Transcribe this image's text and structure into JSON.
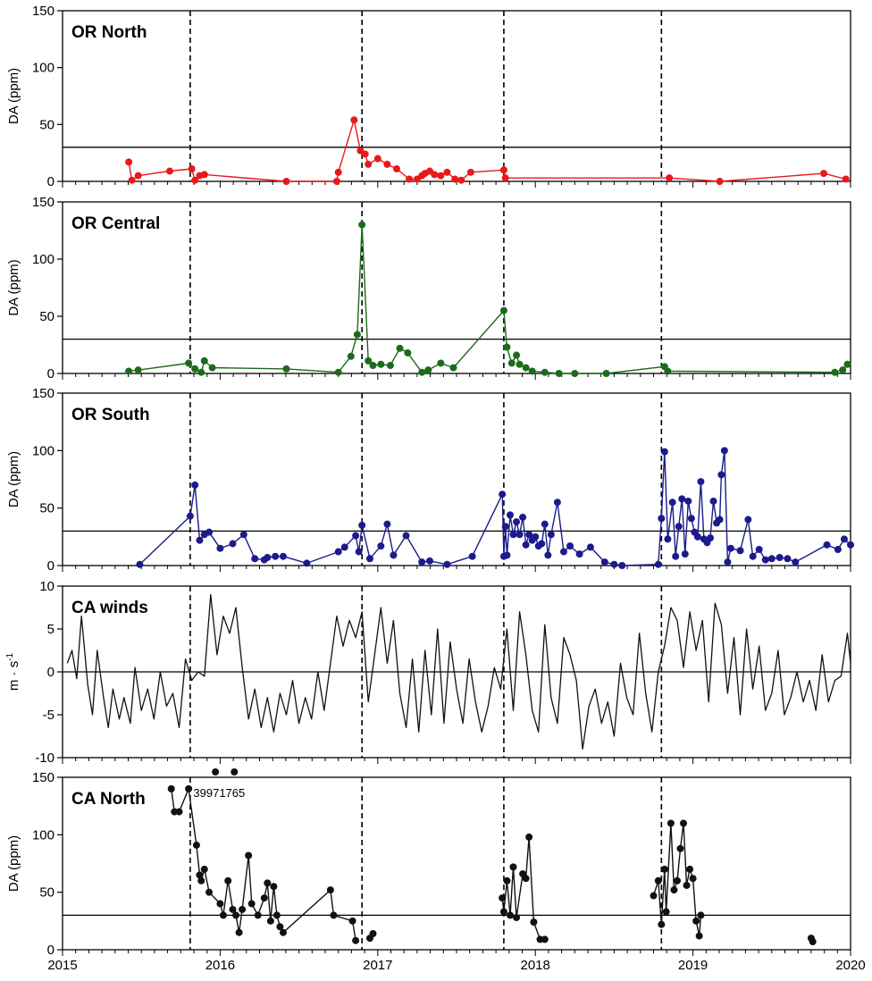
{
  "chart_data": [
    {
      "type": "line",
      "title": "OR North",
      "ylabel": "DA (ppm)",
      "ylim": [
        0,
        150
      ],
      "yticks": [
        "0",
        "50",
        "100",
        "150"
      ],
      "threshold": 30,
      "color": "#e8191b",
      "markers": true,
      "series": [
        {
          "x": [
            2015.42,
            2015.44,
            2015.48,
            2015.68,
            2015.82,
            2015.84,
            2015.87,
            2015.9,
            2016.42,
            2016.74,
            2016.75,
            2016.85,
            2016.89,
            2016.92,
            2016.94,
            2017.0,
            2017.06,
            2017.12,
            2017.2,
            2017.25,
            2017.28,
            2017.3,
            2017.33,
            2017.36,
            2017.4,
            2017.44,
            2017.49,
            2017.53,
            2017.59,
            2017.8,
            2017.81,
            2018.85,
            2019.17,
            2019.83,
            2019.97
          ],
          "y": [
            17,
            1,
            5,
            9,
            11,
            1,
            5,
            6,
            0,
            0,
            8,
            54,
            27,
            24,
            15,
            20,
            15,
            11,
            2,
            2,
            5,
            7,
            9,
            6,
            5,
            8,
            2,
            1,
            8,
            10,
            3,
            3,
            0,
            7,
            2
          ]
        }
      ]
    },
    {
      "type": "line",
      "title": "OR Central",
      "ylabel": "DA (ppm)",
      "ylim": [
        0,
        150
      ],
      "yticks": [
        "0",
        "50",
        "100",
        "150"
      ],
      "threshold": 30,
      "color": "#1b6b1b",
      "markers": true,
      "series": [
        {
          "x": [
            2015.42,
            2015.48,
            2015.8,
            2015.84,
            2015.88,
            2015.9,
            2015.95,
            2016.42,
            2016.75,
            2016.83,
            2016.87,
            2016.9,
            2016.94,
            2016.97,
            2017.02,
            2017.08,
            2017.14,
            2017.19,
            2017.28,
            2017.32,
            2017.4,
            2017.48,
            2017.8,
            2017.82,
            2017.85,
            2017.88,
            2017.9,
            2017.94,
            2017.98,
            2018.06,
            2018.15,
            2018.25,
            2018.45,
            2018.82,
            2018.84,
            2019.9,
            2019.95,
            2019.98
          ],
          "y": [
            2,
            3,
            9,
            4,
            1,
            11,
            5,
            4,
            1,
            15,
            34,
            130,
            11,
            7,
            8,
            7,
            22,
            18,
            1,
            3,
            9,
            5,
            55,
            23,
            9,
            16,
            8,
            5,
            2,
            1,
            0,
            0,
            0,
            6,
            2,
            1,
            3,
            8
          ]
        }
      ]
    },
    {
      "type": "line",
      "title": "OR South",
      "ylabel": "DA (ppm)",
      "ylim": [
        0,
        150
      ],
      "yticks": [
        "0",
        "50",
        "100",
        "150"
      ],
      "threshold": 30,
      "color": "#1b1b8c",
      "markers": true,
      "series": [
        {
          "x": [
            2015.49,
            2015.81,
            2015.84,
            2015.87,
            2015.9,
            2015.93,
            2016.0,
            2016.08,
            2016.15,
            2016.22,
            2016.28,
            2016.3,
            2016.35,
            2016.4,
            2016.55,
            2016.75,
            2016.79,
            2016.86,
            2016.88,
            2016.9,
            2016.95,
            2017.02,
            2017.06,
            2017.1,
            2017.18,
            2017.28,
            2017.33,
            2017.44,
            2017.6,
            2017.79,
            2017.8,
            2017.81,
            2017.82,
            2017.84,
            2017.86,
            2017.88,
            2017.9,
            2017.92,
            2017.94,
            2017.96,
            2017.98,
            2018.0,
            2018.02,
            2018.04,
            2018.06,
            2018.08,
            2018.1,
            2018.14,
            2018.18,
            2018.22,
            2018.28,
            2018.35,
            2018.44,
            2018.5,
            2018.55,
            2018.78,
            2018.8,
            2018.82,
            2018.84,
            2018.87,
            2018.89,
            2018.91,
            2018.93,
            2018.95,
            2018.97,
            2018.99,
            2019.01,
            2019.03,
            2019.05,
            2019.07,
            2019.09,
            2019.11,
            2019.13,
            2019.15,
            2019.17,
            2019.18,
            2019.2,
            2019.22,
            2019.24,
            2019.3,
            2019.35,
            2019.38,
            2019.42,
            2019.46,
            2019.5,
            2019.55,
            2019.6,
            2019.65,
            2019.85,
            2019.92,
            2019.96,
            2020.0
          ],
          "y": [
            1,
            43,
            70,
            22,
            27,
            29,
            15,
            19,
            27,
            6,
            5,
            7,
            8,
            8,
            2,
            12,
            16,
            26,
            12,
            35,
            6,
            17,
            36,
            9,
            26,
            3,
            4,
            1,
            8,
            62,
            8,
            34,
            9,
            44,
            27,
            38,
            27,
            42,
            18,
            27,
            22,
            25,
            17,
            19,
            36,
            9,
            27,
            55,
            12,
            17,
            10,
            16,
            3,
            1,
            0,
            1,
            41,
            99,
            23,
            55,
            8,
            34,
            58,
            10,
            56,
            41,
            29,
            25,
            73,
            23,
            20,
            24,
            56,
            37,
            40,
            79,
            100,
            3,
            15,
            13,
            40,
            8,
            14,
            5,
            6,
            7,
            6,
            3,
            18,
            14,
            23,
            18
          ]
        }
      ]
    },
    {
      "type": "line",
      "title": "CA winds",
      "ylabel": "m · s",
      "ylabel_superscript": "-1",
      "ylim": [
        -10,
        10
      ],
      "yticks": [
        "-10",
        "-5",
        "0",
        "5",
        "10"
      ],
      "threshold": 0,
      "color": "#111111",
      "markers": false,
      "series": [
        {
          "x": [
            2015.03,
            2015.06,
            2015.09,
            2015.12,
            2015.16,
            2015.19,
            2015.22,
            2015.26,
            2015.29,
            2015.32,
            2015.36,
            2015.39,
            2015.43,
            2015.46,
            2015.5,
            2015.54,
            2015.58,
            2015.62,
            2015.66,
            2015.7,
            2015.74,
            2015.78,
            2015.82,
            2015.86,
            2015.9,
            2015.94,
            2015.98,
            2016.02,
            2016.06,
            2016.1,
            2016.14,
            2016.18,
            2016.22,
            2016.26,
            2016.3,
            2016.34,
            2016.38,
            2016.42,
            2016.46,
            2016.5,
            2016.54,
            2016.58,
            2016.62,
            2016.66,
            2016.7,
            2016.74,
            2016.78,
            2016.82,
            2016.86,
            2016.9,
            2016.94,
            2016.98,
            2017.02,
            2017.06,
            2017.1,
            2017.14,
            2017.18,
            2017.22,
            2017.26,
            2017.3,
            2017.34,
            2017.38,
            2017.42,
            2017.46,
            2017.5,
            2017.54,
            2017.58,
            2017.62,
            2017.66,
            2017.7,
            2017.74,
            2017.78,
            2017.82,
            2017.86,
            2017.9,
            2017.94,
            2017.98,
            2018.02,
            2018.06,
            2018.1,
            2018.14,
            2018.18,
            2018.22,
            2018.26,
            2018.3,
            2018.34,
            2018.38,
            2018.42,
            2018.46,
            2018.5,
            2018.54,
            2018.58,
            2018.62,
            2018.66,
            2018.7,
            2018.74,
            2018.78,
            2018.82,
            2018.86,
            2018.9,
            2018.94,
            2018.98,
            2019.02,
            2019.06,
            2019.1,
            2019.14,
            2019.18,
            2019.22,
            2019.26,
            2019.3,
            2019.34,
            2019.38,
            2019.42,
            2019.46,
            2019.5,
            2019.54,
            2019.58,
            2019.62,
            2019.66,
            2019.7,
            2019.74,
            2019.78,
            2019.82,
            2019.86,
            2019.9,
            2019.94,
            2019.98,
            2020.0
          ],
          "y": [
            1.0,
            2.5,
            -0.8,
            6.5,
            -1.5,
            -5.0,
            2.5,
            -3.0,
            -6.5,
            -2.0,
            -5.5,
            -3.0,
            -6.0,
            0.5,
            -4.5,
            -2.0,
            -5.5,
            0.0,
            -4.0,
            -2.5,
            -6.5,
            1.5,
            -1.0,
            0.0,
            -0.5,
            9.0,
            2.0,
            6.5,
            4.5,
            7.5,
            0.5,
            -5.5,
            -2.0,
            -6.5,
            -3.0,
            -7.0,
            -2.5,
            -5.0,
            -1.0,
            -6.0,
            -3.0,
            -5.5,
            0.0,
            -4.5,
            1.0,
            6.5,
            3.0,
            6.0,
            4.0,
            7.0,
            -3.5,
            2.0,
            7.5,
            1.0,
            6.0,
            -2.5,
            -6.5,
            1.5,
            -7.0,
            2.5,
            -5.0,
            5.0,
            -6.0,
            3.5,
            -2.0,
            -6.0,
            1.5,
            -3.5,
            -7.0,
            -4.0,
            0.5,
            -2.0,
            5.0,
            -4.5,
            7.0,
            2.0,
            -4.5,
            -7.0,
            5.5,
            -3.0,
            -6.0,
            4.0,
            2.0,
            -1.0,
            -9.0,
            -4.0,
            -2.0,
            -6.0,
            -3.5,
            -7.5,
            1.0,
            -3.0,
            -5.0,
            4.5,
            -2.5,
            -7.0,
            0.0,
            3.0,
            7.5,
            6.0,
            0.5,
            7.0,
            2.5,
            6.0,
            -3.5,
            8.0,
            5.5,
            -2.5,
            4.0,
            -5.0,
            5.0,
            -2.0,
            3.0,
            -4.5,
            -2.5,
            2.5,
            -5.0,
            -3.0,
            0.0,
            -3.5,
            -1.0,
            -4.5,
            2.0,
            -3.5,
            -1.0,
            -0.5,
            4.5,
            1.0
          ]
        }
      ]
    },
    {
      "type": "line",
      "title": "CA North",
      "ylabel": "DA (ppm)",
      "ylim": [
        0,
        150
      ],
      "yticks": [
        "0",
        "50",
        "100",
        "150"
      ],
      "threshold": 30,
      "color": "#111111",
      "markers": true,
      "annotation": "39971765",
      "offscale_points": [
        2015.97,
        2016.09
      ],
      "series": [
        {
          "x": [
            2015.69,
            2015.71,
            2015.74,
            2015.8,
            2015.85,
            2015.87,
            2015.88,
            2015.9,
            2015.93,
            2016.0,
            2016.02,
            2016.05,
            2016.08,
            2016.1,
            2016.12,
            2016.14,
            2016.18,
            2016.2,
            2016.24,
            2016.28,
            2016.3,
            2016.32,
            2016.34,
            2016.36,
            2016.38,
            2016.4,
            2016.7,
            2016.72,
            2016.84,
            2016.86
          ],
          "y": [
            140,
            120,
            120,
            140,
            91,
            65,
            60,
            70,
            50,
            40,
            30,
            60,
            35,
            30,
            15,
            35,
            82,
            40,
            30,
            45,
            58,
            25,
            55,
            30,
            20,
            15,
            52,
            30,
            25,
            8
          ]
        },
        {
          "x": [
            2016.95,
            2016.97
          ],
          "y": [
            10,
            14
          ]
        },
        {
          "x": [
            2017.79,
            2017.8,
            2017.82,
            2017.84,
            2017.86,
            2017.88,
            2017.92,
            2017.94,
            2017.96,
            2017.99,
            2018.03,
            2018.06
          ],
          "y": [
            45,
            33,
            60,
            30,
            72,
            28,
            66,
            62,
            98,
            24,
            9,
            9
          ]
        },
        {
          "x": [
            2018.75,
            2018.78,
            2018.8,
            2018.82,
            2018.83,
            2018.86,
            2018.88,
            2018.9,
            2018.92,
            2018.94,
            2018.96,
            2018.98,
            2019.0,
            2019.02,
            2019.04,
            2019.05
          ],
          "y": [
            47,
            60,
            22,
            70,
            33,
            110,
            52,
            60,
            88,
            110,
            56,
            70,
            62,
            25,
            12,
            30
          ]
        },
        {
          "x": [
            2019.75,
            2019.76
          ],
          "y": [
            10,
            7
          ]
        }
      ]
    }
  ],
  "x_axis": {
    "range": [
      2015,
      2020
    ],
    "tick_labels": [
      "2015",
      "2016",
      "2017",
      "2018",
      "2019",
      "2020"
    ]
  },
  "event_lines": [
    2015.81,
    2016.9,
    2017.8,
    2018.8
  ]
}
